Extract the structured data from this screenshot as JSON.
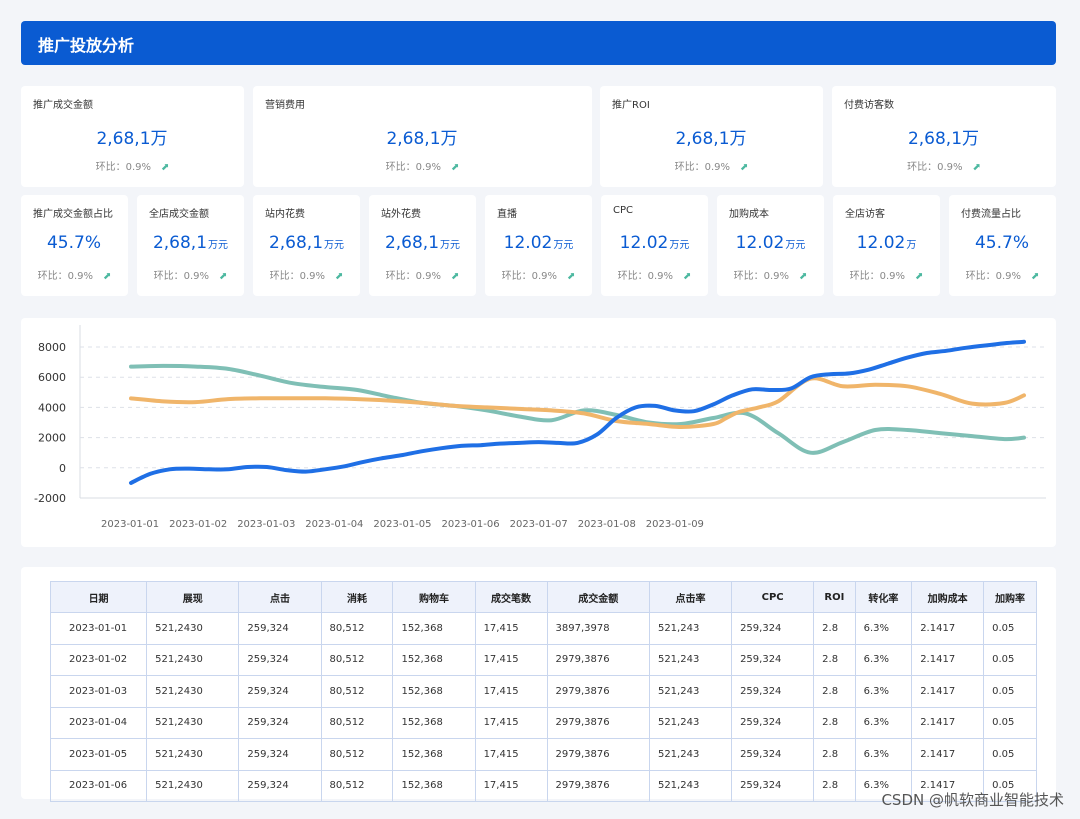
{
  "header": {
    "title": "推广投放分析"
  },
  "kpi_row1": [
    {
      "title": "推广成交金额",
      "value": "2,68,1万",
      "unit": "",
      "change": "环比：0.9%"
    },
    {
      "title": "营销费用",
      "value": "2,68,1万",
      "unit": "",
      "change": "环比：0.9%"
    },
    {
      "title": "推广ROI",
      "value": "2,68,1万",
      "unit": "",
      "change": "环比：0.9%"
    },
    {
      "title": "付费访客数",
      "value": "2,68,1万",
      "unit": "",
      "change": "环比：0.9%"
    }
  ],
  "kpi_row2": [
    {
      "title": "推广成交金额占比",
      "value": "45.7%",
      "unit": "",
      "change": "环比：0.9%"
    },
    {
      "title": "全店成交金额",
      "value": "2,68,1",
      "unit": "万元",
      "change": "环比：0.9%"
    },
    {
      "title": "站内花费",
      "value": "2,68,1",
      "unit": "万元",
      "change": "环比：0.9%"
    },
    {
      "title": "站外花费",
      "value": "2,68,1",
      "unit": "万元",
      "change": "环比：0.9%"
    },
    {
      "title": "直播",
      "value": "12.02",
      "unit": "万元",
      "change": "环比：0.9%"
    },
    {
      "title": "CPC",
      "value": "12.02",
      "unit": "万元",
      "change": "环比：0.9%"
    },
    {
      "title": "加购成本",
      "value": "12.02",
      "unit": "万元",
      "change": "环比：0.9%"
    },
    {
      "title": "全店访客",
      "value": "12.02",
      "unit": "万",
      "change": "环比：0.9%"
    },
    {
      "title": "付费流量占比",
      "value": "45.7%",
      "unit": "",
      "change": "环比：0.9%"
    }
  ],
  "chart_data": {
    "type": "line",
    "categories": [
      "2023-01-01",
      "2023-01-02",
      "2023-01-03",
      "2023-01-04",
      "2023-01-05",
      "2023-01-06",
      "2023-01-07",
      "2023-01-08",
      "2023-01-09"
    ],
    "y_ticks": [
      8000,
      6000,
      4000,
      2000,
      0,
      -2000
    ],
    "ylim": [
      -2000,
      8000
    ],
    "grid": true,
    "series": [
      {
        "color": "#1f6fe5",
        "x": [
          0,
          0.3,
          0.6,
          0.9,
          1.2,
          1.5,
          1.8,
          2.1,
          2.4,
          2.7,
          3.0,
          3.3,
          3.6,
          3.9,
          4.2,
          4.5,
          4.8,
          5.1,
          5.4,
          5.7,
          6.0,
          6.3,
          6.6,
          6.9,
          7.2,
          7.5,
          7.8,
          8.1,
          8.4,
          8.7,
          9.0,
          9.3,
          9.6,
          9.9,
          10.2,
          10.5,
          10.8,
          11.1,
          11.4,
          11.7,
          12.0,
          12.3,
          12.6,
          12.9,
          13.2,
          13.5,
          13.8
        ],
        "values": [
          -1000,
          -400,
          -100,
          -50,
          -100,
          -100,
          50,
          50,
          -150,
          -250,
          -100,
          100,
          400,
          650,
          850,
          1100,
          1300,
          1450,
          1500,
          1600,
          1650,
          1700,
          1650,
          1650,
          2200,
          3300,
          4000,
          4100,
          3800,
          3750,
          4200,
          4800,
          5200,
          5150,
          5250,
          6000,
          6200,
          6250,
          6500,
          6900,
          7300,
          7600,
          7750,
          7950,
          8100,
          8250,
          8350
        ]
      },
      {
        "color": "#f0b56a",
        "x": [
          0,
          0.5,
          1.0,
          1.5,
          2.0,
          2.5,
          3.0,
          3.5,
          4.0,
          4.5,
          5.0,
          5.5,
          6.0,
          6.5,
          7.0,
          7.5,
          8.0,
          8.5,
          9.0,
          9.2,
          9.4,
          9.7,
          10.0,
          10.5,
          11.0,
          11.5,
          12.0,
          12.5,
          13.0,
          13.5,
          13.8
        ],
        "values": [
          4600,
          4400,
          4350,
          4550,
          4600,
          4600,
          4600,
          4550,
          4450,
          4300,
          4100,
          4000,
          3900,
          3800,
          3600,
          3100,
          2900,
          2700,
          2900,
          3300,
          3700,
          4000,
          4400,
          5900,
          5400,
          5500,
          5400,
          4900,
          4250,
          4300,
          4800
        ]
      },
      {
        "color": "#7fbfb5",
        "x": [
          0,
          0.5,
          1.0,
          1.5,
          2.0,
          2.5,
          3.0,
          3.5,
          4.0,
          4.5,
          5.0,
          5.5,
          6.0,
          6.5,
          7.0,
          7.5,
          8.0,
          8.5,
          9.0,
          9.5,
          10.0,
          10.5,
          11.0,
          11.5,
          12.0,
          12.5,
          13.0,
          13.5,
          13.8
        ],
        "values": [
          6700,
          6750,
          6700,
          6550,
          6100,
          5600,
          5350,
          5150,
          4700,
          4300,
          4100,
          3800,
          3400,
          3150,
          3800,
          3500,
          3000,
          2900,
          3300,
          3600,
          2300,
          1000,
          1700,
          2500,
          2500,
          2300,
          2100,
          1900,
          2000
        ]
      }
    ]
  },
  "table": {
    "headers": [
      "日期",
      "展现",
      "点击",
      "消耗",
      "购物车",
      "成交笔数",
      "成交金额",
      "点击率",
      "CPC",
      "ROI",
      "转化率",
      "加购成本",
      "加购率"
    ],
    "rows": [
      [
        "2023-01-01",
        "521,2430",
        "259,324",
        "80,512",
        "152,368",
        "17,415",
        "3897,3978",
        "521,243",
        "259,324",
        "2.8",
        "6.3%",
        "2.1417",
        "0.05"
      ],
      [
        "2023-01-02",
        "521,2430",
        "259,324",
        "80,512",
        "152,368",
        "17,415",
        "2979,3876",
        "521,243",
        "259,324",
        "2.8",
        "6.3%",
        "2.1417",
        "0.05"
      ],
      [
        "2023-01-03",
        "521,2430",
        "259,324",
        "80,512",
        "152,368",
        "17,415",
        "2979,3876",
        "521,243",
        "259,324",
        "2.8",
        "6.3%",
        "2.1417",
        "0.05"
      ],
      [
        "2023-01-04",
        "521,2430",
        "259,324",
        "80,512",
        "152,368",
        "17,415",
        "2979,3876",
        "521,243",
        "259,324",
        "2.8",
        "6.3%",
        "2.1417",
        "0.05"
      ],
      [
        "2023-01-05",
        "521,2430",
        "259,324",
        "80,512",
        "152,368",
        "17,415",
        "2979,3876",
        "521,243",
        "259,324",
        "2.8",
        "6.3%",
        "2.1417",
        "0.05"
      ],
      [
        "2023-01-06",
        "521,2430",
        "259,324",
        "80,512",
        "152,368",
        "17,415",
        "2979,3876",
        "521,243",
        "259,324",
        "2.8",
        "6.3%",
        "2.1417",
        "0.05"
      ]
    ]
  },
  "watermark": "CSDN @帆软商业智能技术"
}
